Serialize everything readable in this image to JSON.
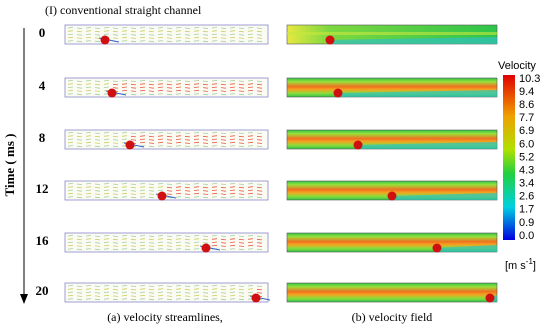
{
  "figure": {
    "title": "(I) conventional straight channel",
    "time_axis_label": "Time ( ms )",
    "times": [
      "0",
      "4",
      "8",
      "12",
      "16",
      "20"
    ],
    "colorbar": {
      "title": "Velocity",
      "ticks": [
        "10.3",
        "9.4",
        "8.6",
        "7.7",
        "6.9",
        "6.0",
        "5.2",
        "4.3",
        "3.4",
        "2.6",
        "1.7",
        "0.9",
        "0.0"
      ],
      "unit_base": "[m s",
      "unit_exp": "-1",
      "unit_close": "]"
    },
    "captions": [
      "(a) velocity streamlines,",
      "(b) velocity field"
    ]
  }
}
